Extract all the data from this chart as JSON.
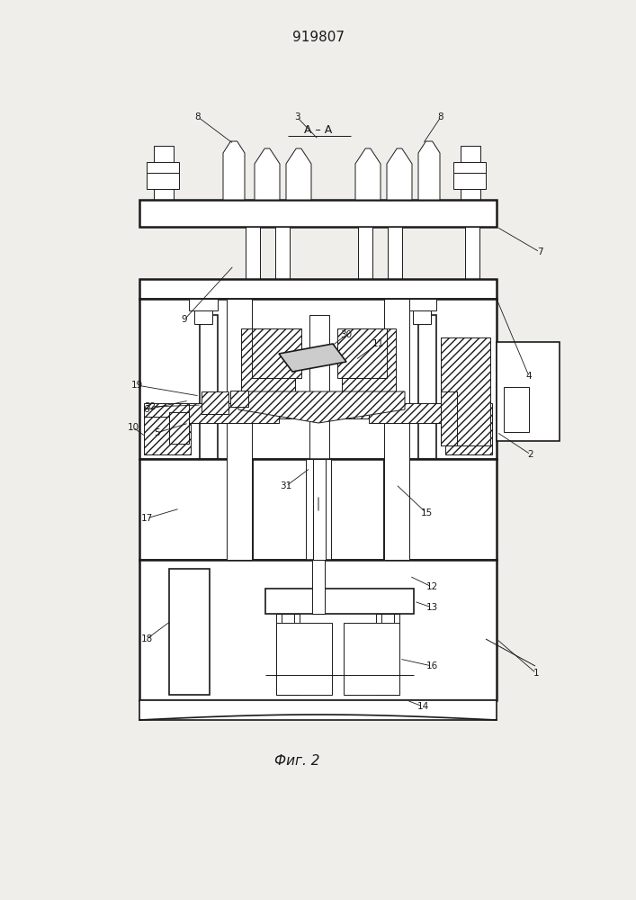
{
  "title": "919807",
  "figure_label": "Фиг. 2",
  "section_label": "А – А",
  "bg_color": "#f0eeea",
  "line_color": "#1a1a1a",
  "fig_width": 7.07,
  "fig_height": 10.0,
  "dpi": 100
}
